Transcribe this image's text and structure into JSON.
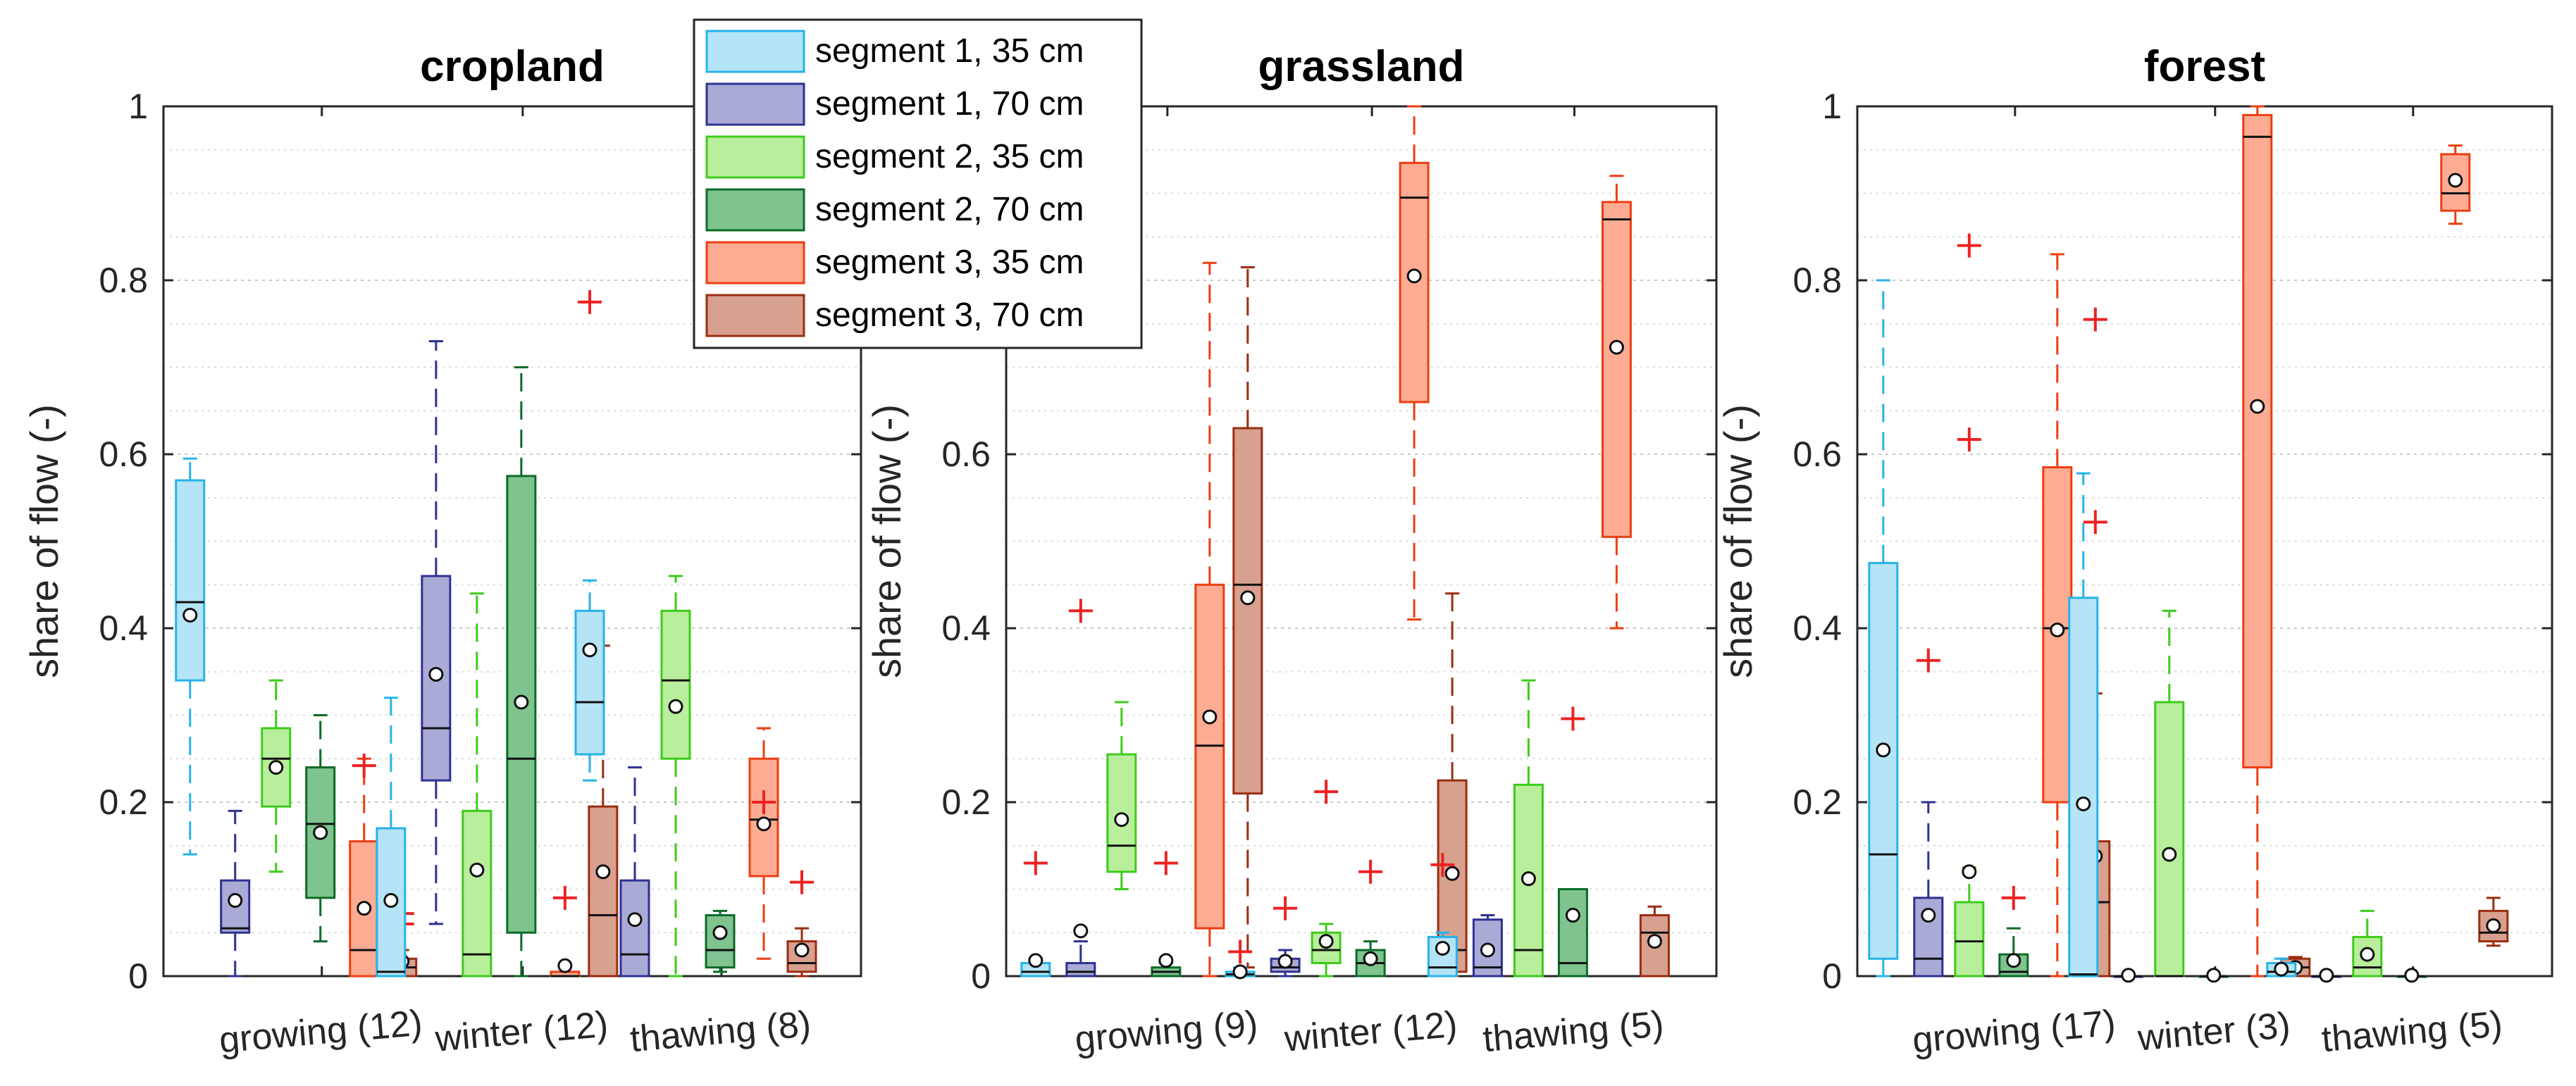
{
  "chart_data": [
    {
      "type": "box",
      "title": "cropland",
      "xlabel": "",
      "ylabel": "share of flow (-)",
      "ylim": [
        0,
        1
      ],
      "yticks": [
        "0",
        "0.2",
        "0.4",
        "0.6",
        "0.8",
        "1"
      ],
      "categories": [
        "growing (12)",
        "winter (12)",
        "thawing (8)"
      ],
      "boxes": [
        [
          {
            "q1": 0.34,
            "med": 0.43,
            "q3": 0.57,
            "lo": 0.14,
            "hi": 0.595,
            "mean": 0.415,
            "outliers": []
          },
          {
            "q1": 0.05,
            "med": 0.055,
            "q3": 0.11,
            "lo": 0.0,
            "hi": 0.19,
            "mean": 0.087,
            "outliers": []
          },
          {
            "q1": 0.195,
            "med": 0.25,
            "q3": 0.285,
            "lo": 0.12,
            "hi": 0.34,
            "mean": 0.24,
            "outliers": []
          },
          {
            "q1": 0.09,
            "med": 0.175,
            "q3": 0.24,
            "lo": 0.04,
            "hi": 0.3,
            "mean": 0.165,
            "outliers": []
          },
          {
            "q1": 0.0,
            "med": 0.03,
            "q3": 0.155,
            "lo": 0.0,
            "hi": 0.25,
            "mean": 0.078,
            "outliers": [
              0.242
            ]
          },
          {
            "q1": 0.0,
            "med": 0.01,
            "q3": 0.02,
            "lo": 0.0,
            "hi": 0.03,
            "mean": 0.017,
            "outliers": [
              0.06,
              0.072
            ]
          }
        ],
        [
          {
            "q1": 0.0,
            "med": 0.005,
            "q3": 0.17,
            "lo": 0.0,
            "hi": 0.32,
            "mean": 0.087,
            "outliers": []
          },
          {
            "q1": 0.225,
            "med": 0.285,
            "q3": 0.46,
            "lo": 0.06,
            "hi": 0.73,
            "mean": 0.347,
            "outliers": []
          },
          {
            "q1": 0.0,
            "med": 0.025,
            "q3": 0.19,
            "lo": 0.0,
            "hi": 0.44,
            "mean": 0.122,
            "outliers": []
          },
          {
            "q1": 0.05,
            "med": 0.25,
            "q3": 0.575,
            "lo": 0.0,
            "hi": 0.7,
            "mean": 0.315,
            "outliers": []
          },
          {
            "q1": 0.0,
            "med": 0.0,
            "q3": 0.005,
            "lo": 0.0,
            "hi": 0.01,
            "mean": 0.012,
            "outliers": [
              0.09
            ]
          },
          {
            "q1": 0.0,
            "med": 0.07,
            "q3": 0.195,
            "lo": 0.0,
            "hi": 0.38,
            "mean": 0.12,
            "outliers": []
          }
        ],
        [
          {
            "q1": 0.255,
            "med": 0.315,
            "q3": 0.42,
            "lo": 0.225,
            "hi": 0.455,
            "mean": 0.375,
            "outliers": [
              0.775
            ]
          },
          {
            "q1": 0.0,
            "med": 0.025,
            "q3": 0.11,
            "lo": 0.0,
            "hi": 0.24,
            "mean": 0.065,
            "outliers": []
          },
          {
            "q1": 0.25,
            "med": 0.34,
            "q3": 0.42,
            "lo": 0.0,
            "hi": 0.46,
            "mean": 0.31,
            "outliers": []
          },
          {
            "q1": 0.01,
            "med": 0.03,
            "q3": 0.07,
            "lo": 0.005,
            "hi": 0.075,
            "mean": 0.05,
            "outliers": []
          },
          {
            "q1": 0.115,
            "med": 0.18,
            "q3": 0.25,
            "lo": 0.02,
            "hi": 0.285,
            "mean": 0.175,
            "outliers": [
              0.2
            ]
          },
          {
            "q1": 0.005,
            "med": 0.015,
            "q3": 0.04,
            "lo": 0.0,
            "hi": 0.055,
            "mean": 0.03,
            "outliers": [
              0.108
            ]
          }
        ]
      ]
    },
    {
      "type": "box",
      "title": "grassland",
      "xlabel": "",
      "ylabel": "share of flow (-)",
      "ylim": [
        0,
        1
      ],
      "yticks": [
        "0",
        "0.2",
        "0.4",
        "0.6",
        "0.8",
        "1"
      ],
      "categories": [
        "growing (9)",
        "winter (12)",
        "thawing (5)"
      ],
      "boxes": [
        [
          {
            "q1": 0.0,
            "med": 0.005,
            "q3": 0.015,
            "lo": 0.0,
            "hi": 0.02,
            "mean": 0.018,
            "outliers": [
              0.13
            ]
          },
          {
            "q1": 0.0,
            "med": 0.005,
            "q3": 0.015,
            "lo": 0.0,
            "hi": 0.04,
            "mean": 0.052,
            "outliers": [
              0.42
            ]
          },
          {
            "q1": 0.12,
            "med": 0.15,
            "q3": 0.255,
            "lo": 0.1,
            "hi": 0.315,
            "mean": 0.18,
            "outliers": []
          },
          {
            "q1": 0.0,
            "med": 0.005,
            "q3": 0.01,
            "lo": 0.0,
            "hi": 0.015,
            "mean": 0.018,
            "outliers": [
              0.13
            ]
          },
          {
            "q1": 0.055,
            "med": 0.265,
            "q3": 0.45,
            "lo": 0.0,
            "hi": 0.82,
            "mean": 0.298,
            "outliers": []
          },
          {
            "q1": 0.21,
            "med": 0.45,
            "q3": 0.63,
            "lo": 0.01,
            "hi": 0.815,
            "mean": 0.435,
            "outliers": []
          }
        ],
        [
          {
            "q1": 0.0,
            "med": 0.002,
            "q3": 0.005,
            "lo": 0.0,
            "hi": 0.01,
            "mean": 0.005,
            "outliers": [
              0.028
            ]
          },
          {
            "q1": 0.005,
            "med": 0.01,
            "q3": 0.02,
            "lo": 0.0,
            "hi": 0.03,
            "mean": 0.017,
            "outliers": [
              0.078
            ]
          },
          {
            "q1": 0.015,
            "med": 0.03,
            "q3": 0.05,
            "lo": 0.0,
            "hi": 0.06,
            "mean": 0.04,
            "outliers": [
              0.212
            ]
          },
          {
            "q1": 0.0,
            "med": 0.015,
            "q3": 0.03,
            "lo": 0.0,
            "hi": 0.04,
            "mean": 0.02,
            "outliers": [
              0.12
            ]
          },
          {
            "q1": 0.66,
            "med": 0.895,
            "q3": 0.935,
            "lo": 0.41,
            "hi": 1.0,
            "mean": 0.805,
            "outliers": []
          },
          {
            "q1": 0.005,
            "med": 0.03,
            "q3": 0.225,
            "lo": 0.0,
            "hi": 0.44,
            "mean": 0.118,
            "outliers": []
          }
        ],
        [
          {
            "q1": 0.0,
            "med": 0.01,
            "q3": 0.045,
            "lo": 0.0,
            "hi": 0.05,
            "mean": 0.032,
            "outliers": [
              0.128
            ]
          },
          {
            "q1": 0.0,
            "med": 0.01,
            "q3": 0.065,
            "lo": 0.0,
            "hi": 0.07,
            "mean": 0.03,
            "outliers": []
          },
          {
            "q1": 0.0,
            "med": 0.03,
            "q3": 0.22,
            "lo": 0.0,
            "hi": 0.34,
            "mean": 0.112,
            "outliers": []
          },
          {
            "q1": 0.0,
            "med": 0.015,
            "q3": 0.1,
            "lo": 0.0,
            "hi": 0.1,
            "mean": 0.07,
            "outliers": [
              0.296
            ]
          },
          {
            "q1": 0.505,
            "med": 0.87,
            "q3": 0.89,
            "lo": 0.4,
            "hi": 0.92,
            "mean": 0.723,
            "outliers": []
          },
          {
            "q1": 0.0,
            "med": 0.05,
            "q3": 0.07,
            "lo": 0.0,
            "hi": 0.08,
            "mean": 0.04,
            "outliers": []
          }
        ]
      ]
    },
    {
      "type": "box",
      "title": "forest",
      "xlabel": "",
      "ylabel": "share of flow (-)",
      "ylim": [
        0,
        1
      ],
      "yticks": [
        "0",
        "0.2",
        "0.4",
        "0.6",
        "0.8",
        "1"
      ],
      "categories": [
        "growing (17)",
        "winter (3)",
        "thawing (5)"
      ],
      "boxes": [
        [
          {
            "q1": 0.02,
            "med": 0.14,
            "q3": 0.475,
            "lo": 0.0,
            "hi": 0.8,
            "mean": 0.26,
            "outliers": []
          },
          {
            "q1": 0.0,
            "med": 0.02,
            "q3": 0.09,
            "lo": 0.0,
            "hi": 0.2,
            "mean": 0.07,
            "outliers": [
              0.363
            ]
          },
          {
            "q1": 0.0,
            "med": 0.04,
            "q3": 0.085,
            "lo": 0.0,
            "hi": 0.125,
            "mean": 0.12,
            "outliers": [
              0.617,
              0.84
            ]
          },
          {
            "q1": 0.0,
            "med": 0.005,
            "q3": 0.025,
            "lo": 0.0,
            "hi": 0.055,
            "mean": 0.018,
            "outliers": [
              0.09
            ]
          },
          {
            "q1": 0.2,
            "med": 0.4,
            "q3": 0.585,
            "lo": 0.0,
            "hi": 0.83,
            "mean": 0.398,
            "outliers": []
          },
          {
            "q1": 0.0,
            "med": 0.085,
            "q3": 0.155,
            "lo": 0.0,
            "hi": 0.325,
            "mean": 0.138,
            "outliers": [
              0.522,
              0.755
            ]
          }
        ],
        [
          {
            "q1": 0.0,
            "med": 0.002,
            "q3": 0.435,
            "lo": 0.0,
            "hi": 0.578,
            "mean": 0.198,
            "outliers": []
          },
          {
            "q1": 0.0,
            "med": 0.0,
            "q3": 0.0,
            "lo": 0.0,
            "hi": 0.0,
            "mean": 0.001,
            "outliers": []
          },
          {
            "q1": 0.0,
            "med": 0.0,
            "q3": 0.315,
            "lo": 0.0,
            "hi": 0.42,
            "mean": 0.14,
            "outliers": []
          },
          {
            "q1": 0.0,
            "med": 0.0,
            "q3": 0.0,
            "lo": 0.0,
            "hi": 0.0,
            "mean": 0.001,
            "outliers": []
          },
          {
            "q1": 0.24,
            "med": 0.965,
            "q3": 0.99,
            "lo": 0.0,
            "hi": 1.0,
            "mean": 0.655,
            "outliers": []
          },
          {
            "q1": 0.0,
            "med": 0.01,
            "q3": 0.02,
            "lo": 0.0,
            "hi": 0.022,
            "mean": 0.01,
            "outliers": []
          }
        ],
        [
          {
            "q1": 0.0,
            "med": 0.005,
            "q3": 0.015,
            "lo": 0.0,
            "hi": 0.02,
            "mean": 0.008,
            "outliers": []
          },
          {
            "q1": 0.0,
            "med": 0.0,
            "q3": 0.0,
            "lo": 0.0,
            "hi": 0.0,
            "mean": 0.001,
            "outliers": []
          },
          {
            "q1": 0.0,
            "med": 0.01,
            "q3": 0.045,
            "lo": 0.0,
            "hi": 0.075,
            "mean": 0.025,
            "outliers": []
          },
          {
            "q1": 0.0,
            "med": 0.0,
            "q3": 0.0,
            "lo": 0.0,
            "hi": 0.0,
            "mean": 0.001,
            "outliers": []
          },
          {
            "q1": 0.88,
            "med": 0.9,
            "q3": 0.945,
            "lo": 0.865,
            "hi": 0.955,
            "mean": 0.915,
            "outliers": []
          },
          {
            "q1": 0.04,
            "med": 0.05,
            "q3": 0.075,
            "lo": 0.035,
            "hi": 0.09,
            "mean": 0.058,
            "outliers": []
          }
        ]
      ]
    }
  ],
  "series": [
    {
      "name": "segment 1, 35 cm",
      "fill": "#b4e4f6",
      "stroke": "#27b3e8"
    },
    {
      "name": "segment 1, 70 cm",
      "fill": "#a9abd6",
      "stroke": "#2e3192"
    },
    {
      "name": "segment 2, 35 cm",
      "fill": "#b9ee9c",
      "stroke": "#3ecb1c"
    },
    {
      "name": "segment 2, 70 cm",
      "fill": "#7fc38f",
      "stroke": "#0c6b27"
    },
    {
      "name": "segment 3, 35 cm",
      "fill": "#fdac93",
      "stroke": "#ec3e12"
    },
    {
      "name": "segment 3, 70 cm",
      "fill": "#d8a08f",
      "stroke": "#9a2d11"
    }
  ],
  "colors": {
    "outlier": "#ee2222",
    "axis": "#262626",
    "grid": "#dcdcdc",
    "median": "#111111"
  }
}
